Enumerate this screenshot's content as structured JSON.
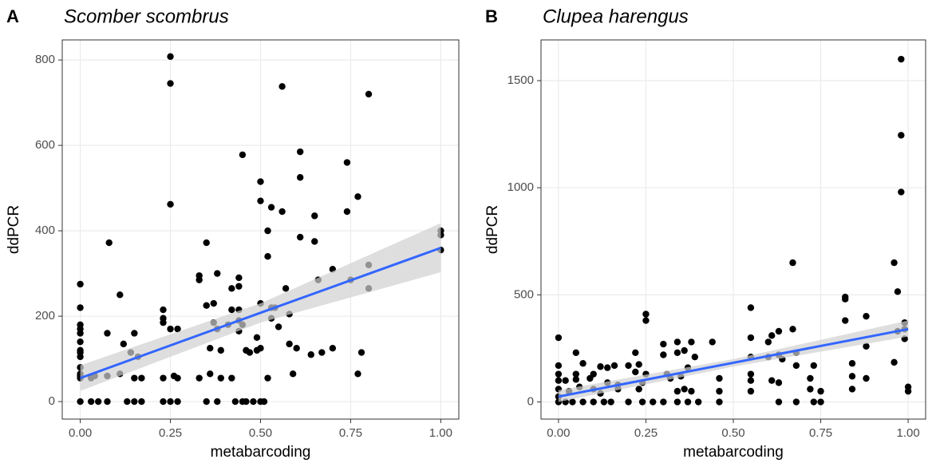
{
  "chart_data": [
    {
      "type": "scatter",
      "panel_label": "A",
      "title": "Scomber scombrus",
      "x_label": "metabarcoding",
      "y_label": "ddPCR",
      "xlim": [
        -0.05,
        1.05
      ],
      "ylim": [
        -41,
        847
      ],
      "xticks": [
        {
          "value": 0,
          "label": "0.00"
        },
        {
          "value": 0.25,
          "label": "0.25"
        },
        {
          "value": 0.5,
          "label": "0.50"
        },
        {
          "value": 0.75,
          "label": "0.75"
        },
        {
          "value": 1,
          "label": "1.00"
        }
      ],
      "yticks": [
        0,
        200,
        400,
        600,
        800
      ],
      "grid": true,
      "color": "#000000",
      "x": [
        0,
        0,
        0,
        0,
        0,
        0,
        0,
        0,
        0,
        0,
        0,
        0,
        0,
        0,
        0.03,
        0.03,
        0.04,
        0.05,
        0.075,
        0.075,
        0.075,
        0.08,
        0.11,
        0.11,
        0.12,
        0.13,
        0.14,
        0.15,
        0.15,
        0.15,
        0.16,
        0.17,
        0.17,
        0.23,
        0.23,
        0.23,
        0.23,
        0.23,
        0.25,
        0.25,
        0.25,
        0.25,
        0.25,
        0.26,
        0.27,
        0.27,
        0.27,
        0.33,
        0.33,
        0.33,
        0.35,
        0.35,
        0.35,
        0.36,
        0.36,
        0.37,
        0.37,
        0.38,
        0.38,
        0.38,
        0.39,
        0.39,
        0.41,
        0.42,
        0.42,
        0.42,
        0.43,
        0.44,
        0.44,
        0.44,
        0.44,
        0.44,
        0.45,
        0.45,
        0.45,
        0.46,
        0.46,
        0.47,
        0.48,
        0.49,
        0.49,
        0.5,
        0.5,
        0.5,
        0.5,
        0.5,
        0.51,
        0.52,
        0.52,
        0.52,
        0.53,
        0.53,
        0.53,
        0.54,
        0.55,
        0.56,
        0.56,
        0.57,
        0.58,
        0.58,
        0.59,
        0.6,
        0.61,
        0.61,
        0.61,
        0.64,
        0.65,
        0.65,
        0.66,
        0.67,
        0.7,
        0.7,
        0.74,
        0.74,
        0.75,
        0.77,
        0.77,
        0.78,
        0.8,
        0.8,
        0.8,
        1,
        1,
        1
      ],
      "values": [
        0,
        55,
        60,
        65,
        80,
        105,
        115,
        120,
        140,
        160,
        170,
        180,
        220,
        275,
        0,
        55,
        60,
        0,
        0,
        60,
        160,
        372,
        250,
        65,
        135,
        0,
        115,
        160,
        55,
        0,
        105,
        55,
        0,
        0,
        55,
        185,
        195,
        215,
        808,
        745,
        462,
        170,
        0,
        60,
        170,
        55,
        0,
        55,
        285,
        295,
        0,
        225,
        372,
        65,
        125,
        185,
        230,
        170,
        300,
        0,
        55,
        120,
        180,
        55,
        265,
        215,
        0,
        165,
        190,
        290,
        270,
        215,
        0,
        578,
        180,
        120,
        0,
        115,
        0,
        150,
        120,
        0,
        515,
        470,
        230,
        125,
        0,
        55,
        400,
        340,
        455,
        220,
        195,
        220,
        175,
        738,
        445,
        265,
        135,
        205,
        65,
        125,
        585,
        525,
        385,
        110,
        435,
        375,
        285,
        115,
        125,
        310,
        560,
        445,
        285,
        480,
        65,
        115,
        720,
        320,
        265,
        400,
        390,
        355
      ],
      "fit": {
        "x": [
          0,
          0.5,
          1
        ],
        "values": [
          55,
          208,
          360
        ],
        "lower": [
          25,
          185,
          303
        ],
        "upper": [
          85,
          230,
          418
        ]
      },
      "fit_color": "#3366ff",
      "band_color": "#d0d0d0"
    },
    {
      "type": "scatter",
      "panel_label": "B",
      "title": "Clupea harengus",
      "x_label": "metabarcoding",
      "y_label": "ddPCR",
      "xlim": [
        -0.05,
        1.05
      ],
      "ylim": [
        -80,
        1690
      ],
      "xticks": [
        {
          "value": 0,
          "label": "0.00"
        },
        {
          "value": 0.25,
          "label": "0.25"
        },
        {
          "value": 0.5,
          "label": "0.50"
        },
        {
          "value": 0.75,
          "label": "0.75"
        },
        {
          "value": 1,
          "label": "1.00"
        }
      ],
      "yticks": [
        0,
        500,
        1000,
        1500
      ],
      "grid": true,
      "color": "#000000",
      "x": [
        0,
        0,
        0,
        0,
        0,
        0,
        0,
        0.02,
        0.02,
        0.03,
        0.04,
        0.05,
        0.05,
        0.05,
        0.06,
        0.07,
        0.07,
        0.09,
        0.1,
        0.1,
        0.1,
        0.12,
        0.12,
        0.13,
        0.14,
        0.14,
        0.15,
        0.16,
        0.17,
        0.17,
        0.2,
        0.2,
        0.22,
        0.22,
        0.23,
        0.23,
        0.24,
        0.24,
        0.25,
        0.25,
        0.25,
        0.27,
        0.3,
        0.3,
        0.3,
        0.31,
        0.32,
        0.34,
        0.34,
        0.34,
        0.34,
        0.35,
        0.36,
        0.36,
        0.37,
        0.37,
        0.38,
        0.38,
        0.39,
        0.4,
        0.44,
        0.46,
        0.46,
        0.46,
        0.55,
        0.55,
        0.55,
        0.55,
        0.55,
        0.55,
        0.6,
        0.6,
        0.61,
        0.61,
        0.63,
        0.63,
        0.63,
        0.63,
        0.64,
        0.67,
        0.67,
        0.68,
        0.68,
        0.68,
        0.72,
        0.72,
        0.73,
        0.73,
        0.75,
        0.75,
        0.82,
        0.82,
        0.82,
        0.84,
        0.84,
        0.84,
        0.88,
        0.88,
        0.88,
        0.96,
        0.96,
        0.97,
        0.97,
        0.98,
        0.98,
        0.98,
        0.99,
        0.99,
        0.99,
        1,
        1
      ],
      "values": [
        0,
        25,
        60,
        100,
        130,
        170,
        300,
        0,
        100,
        50,
        0,
        105,
        230,
        130,
        70,
        0,
        180,
        110,
        0,
        60,
        130,
        165,
        40,
        0,
        160,
        90,
        0,
        170,
        60,
        80,
        170,
        0,
        140,
        230,
        60,
        175,
        90,
        0,
        410,
        380,
        130,
        0,
        270,
        220,
        0,
        130,
        110,
        0,
        230,
        280,
        50,
        120,
        240,
        60,
        160,
        0,
        280,
        50,
        210,
        0,
        280,
        50,
        0,
        110,
        440,
        300,
        210,
        130,
        100,
        50,
        210,
        280,
        310,
        100,
        90,
        330,
        0,
        220,
        200,
        340,
        650,
        170,
        0,
        230,
        110,
        60,
        0,
        170,
        50,
        0,
        480,
        490,
        380,
        180,
        120,
        60,
        260,
        400,
        110,
        650,
        185,
        515,
        330,
        1600,
        1245,
        980,
        370,
        340,
        295,
        70,
        50
      ],
      "fit": {
        "x": [
          0,
          0.5,
          1
        ],
        "values": [
          25,
          183,
          340
        ],
        "lower": [
          0,
          165,
          305
        ],
        "upper": [
          55,
          200,
          380
        ]
      },
      "fit_color": "#3366ff",
      "band_color": "#d0d0d0"
    }
  ]
}
